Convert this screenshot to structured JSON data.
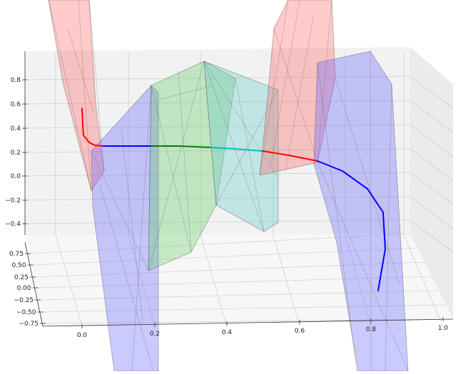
{
  "chart_data": {
    "type": "3d-line",
    "title": "",
    "xlabel": "",
    "ylabel": "",
    "zlabel": "",
    "grid": true,
    "x_ticks": [
      "0.0",
      "0.2",
      "0.4",
      "0.6",
      "0.8",
      "1.0"
    ],
    "y_ticks": [
      "−0.75",
      "−0.50",
      "−0.25",
      "0.00",
      "0.25",
      "0.50",
      "0.75"
    ],
    "z_ticks": [
      "−0.4",
      "−0.2",
      "0.0",
      "0.2",
      "0.4",
      "0.6",
      "0.8"
    ],
    "xlim": [
      -0.1,
      1.03
    ],
    "ylim": [
      -0.8,
      0.9
    ],
    "zlim": [
      -0.5,
      0.95
    ],
    "regions": [
      {
        "color": "#ff6666",
        "label": "",
        "z": [
          -0.02,
          1.6
        ]
      },
      {
        "color": "#6666ff",
        "label": "",
        "z": [
          -0.6,
          0.8
        ]
      },
      {
        "color": "#66cc66",
        "label": "",
        "z": [
          -0.45,
          1.0
        ]
      },
      {
        "color": "#66cccc",
        "label": "",
        "z": [
          -0.35,
          0.85
        ]
      },
      {
        "color": "#ff6666",
        "label": "",
        "z": [
          -0.02,
          1.6
        ]
      },
      {
        "color": "#6666ff",
        "label": "",
        "z": [
          -0.6,
          1.0
        ]
      }
    ],
    "series": [
      {
        "color": "#ff0000",
        "points": [
          [
            0.0,
            0.0,
            0.55
          ],
          [
            0.0,
            0.0,
            0.42
          ],
          [
            0.01,
            0.0,
            0.34
          ],
          [
            0.03,
            0.0,
            0.3
          ],
          [
            0.06,
            0.0,
            0.26
          ],
          [
            0.12,
            0.0,
            0.25
          ]
        ]
      },
      {
        "color": "#0000ff",
        "points": [
          [
            0.12,
            0.0,
            0.25
          ],
          [
            0.18,
            0.0,
            0.25
          ],
          [
            0.25,
            0.0,
            0.25
          ]
        ]
      },
      {
        "color": "#008000",
        "points": [
          [
            0.25,
            0.0,
            0.25
          ],
          [
            0.32,
            0.0,
            0.245
          ],
          [
            0.42,
            0.0,
            0.245
          ]
        ]
      },
      {
        "color": "#00bfbf",
        "points": [
          [
            0.42,
            0.0,
            0.245
          ],
          [
            0.48,
            0.0,
            0.24
          ],
          [
            0.55,
            0.0,
            0.235
          ]
        ]
      },
      {
        "color": "#ff0000",
        "points": [
          [
            0.55,
            0.0,
            0.235
          ],
          [
            0.61,
            0.0,
            0.22
          ],
          [
            0.67,
            0.0,
            0.2
          ]
        ]
      },
      {
        "color": "#0000ff",
        "points": [
          [
            0.67,
            0.0,
            0.2
          ],
          [
            0.73,
            -0.05,
            0.15
          ],
          [
            0.78,
            -0.15,
            0.05
          ],
          [
            0.81,
            -0.3,
            -0.08
          ],
          [
            0.83,
            -0.5,
            -0.2
          ],
          [
            0.83,
            -0.75,
            -0.3
          ]
        ]
      }
    ]
  }
}
